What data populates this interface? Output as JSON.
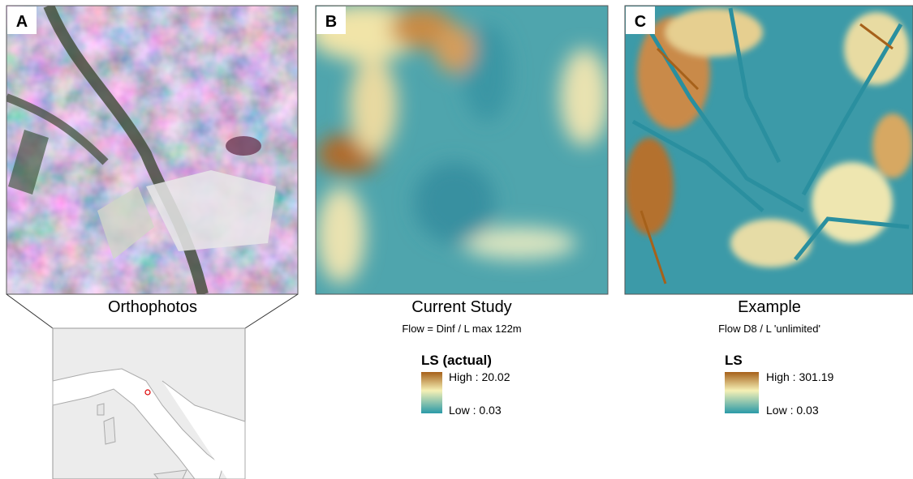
{
  "panels": [
    {
      "letter": "A",
      "title": "Orthophotos"
    },
    {
      "letter": "B",
      "title": "Current Study",
      "subtitle": "Flow = Dinf / L max 122m",
      "legend": {
        "title": "LS (actual)",
        "high": "High : 20.02",
        "low": "Low : 0.03"
      }
    },
    {
      "letter": "C",
      "title": "Example",
      "subtitle": "Flow D8 /  L 'unlimited'",
      "legend": {
        "title": "LS",
        "high": "High : 301.19",
        "low": "Low : 0.03"
      }
    }
  ]
}
